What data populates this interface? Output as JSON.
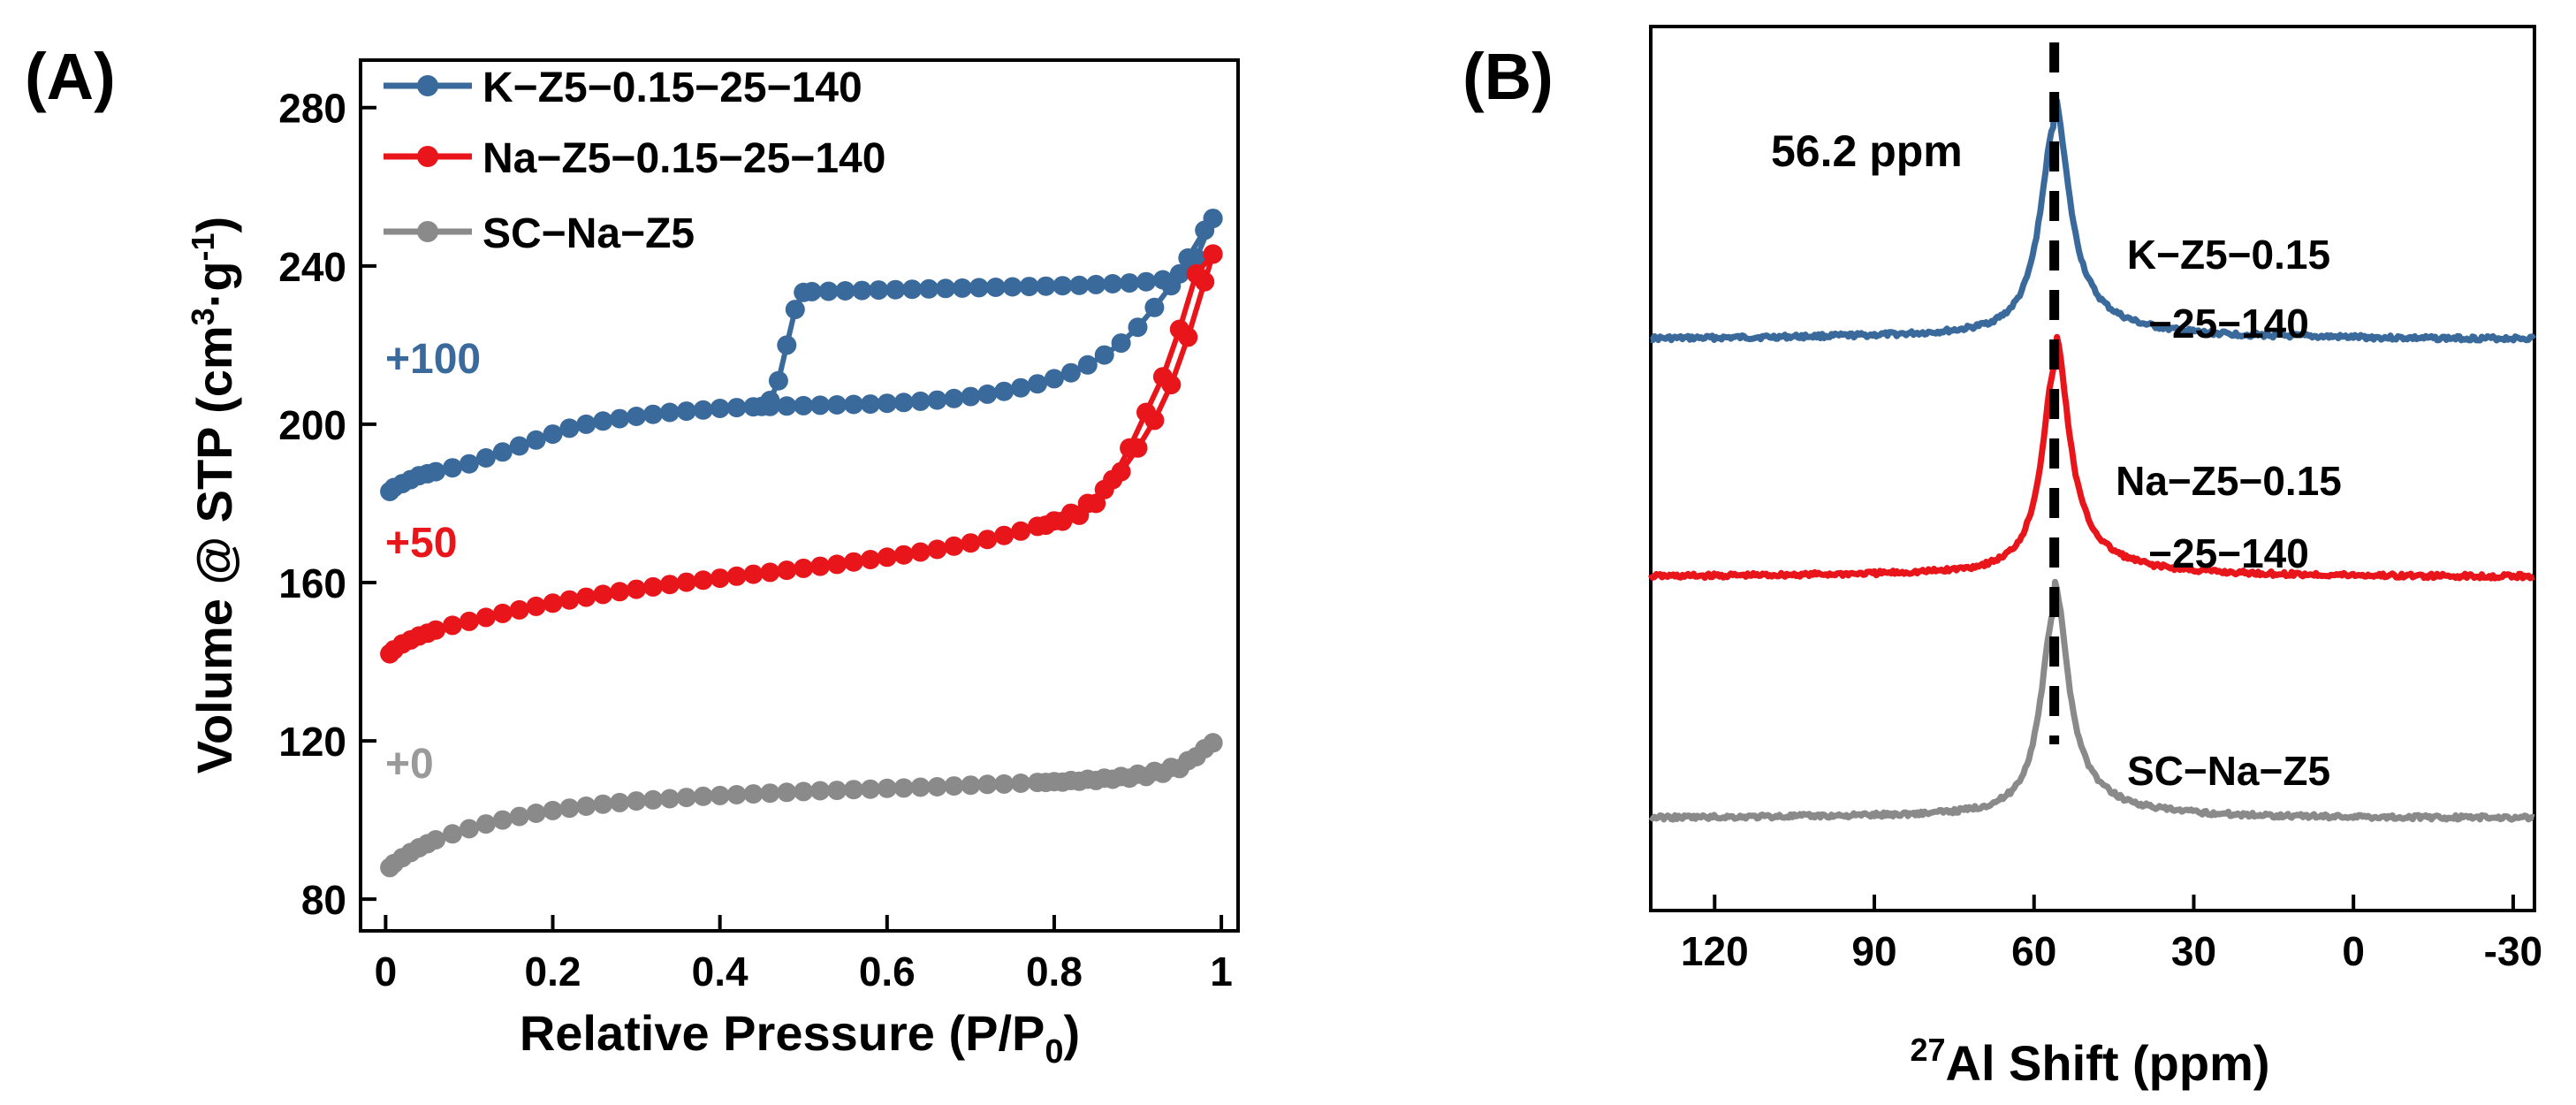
{
  "chart_data": [
    {
      "panel_label": "(A)",
      "type": "line",
      "xlabel": "Relative Pressure (P/P",
      "xlabel_sub": "0",
      "xlabel_end": ")",
      "ylabel_main": "Volume @ STP (cm",
      "ylabel_sup": "3",
      "ylabel_mid": "·g",
      "ylabel_sup2": "-1",
      "ylabel_end": ")",
      "xlim": [
        -0.03,
        1.02
      ],
      "ylim": [
        72,
        292
      ],
      "xticks": [
        0,
        0.2,
        0.4,
        0.6,
        0.8,
        1
      ],
      "xtick_labels": [
        "0",
        "0.2",
        "0.4",
        "0.6",
        "0.8",
        "1"
      ],
      "yticks": [
        80,
        120,
        160,
        200,
        240,
        280
      ],
      "ytick_labels": [
        "80",
        "120",
        "160",
        "200",
        "240",
        "280"
      ],
      "legend": [
        "K−Z5−0.15−25−140",
        "Na−Z5−0.15−25−140",
        "SC−Na−Z5"
      ],
      "offsets": [
        "+100",
        "+50",
        "+0"
      ],
      "series": [
        {
          "name": "K−Z5−0.15−25−140",
          "color": "#3a6a9b",
          "offset_value": 100,
          "adsorption": {
            "x": [
              0.005,
              0.01,
              0.02,
              0.03,
              0.04,
              0.05,
              0.06,
              0.08,
              0.1,
              0.12,
              0.14,
              0.16,
              0.18,
              0.2,
              0.22,
              0.24,
              0.26,
              0.28,
              0.3,
              0.32,
              0.34,
              0.36,
              0.38,
              0.4,
              0.42,
              0.44,
              0.46,
              0.48,
              0.5,
              0.52,
              0.54,
              0.56,
              0.58,
              0.6,
              0.62,
              0.64,
              0.66,
              0.68,
              0.7,
              0.72,
              0.74,
              0.76,
              0.78,
              0.8,
              0.82,
              0.84,
              0.86,
              0.88,
              0.9,
              0.92,
              0.94,
              0.96,
              0.98,
              0.99
            ],
            "y": [
              183,
              184,
              185,
              186,
              187,
              187.5,
              188,
              189,
              190,
              191.5,
              193,
              194.5,
              196,
              197.5,
              199,
              200,
              200.8,
              201.4,
              202,
              202.5,
              203,
              203.3,
              203.6,
              204,
              204.2,
              204.4,
              204.5,
              204.6,
              204.7,
              204.8,
              204.9,
              205,
              205.1,
              205.3,
              205.5,
              205.8,
              206.1,
              206.5,
              207,
              207.6,
              208.3,
              209.2,
              210.2,
              211.5,
              213,
              215,
              217.5,
              220.5,
              224.5,
              229.5,
              235,
              242,
              249,
              252
            ]
          },
          "desorption": {
            "x": [
              0.99,
              0.97,
              0.95,
              0.93,
              0.91,
              0.89,
              0.87,
              0.85,
              0.83,
              0.81,
              0.79,
              0.77,
              0.75,
              0.73,
              0.71,
              0.69,
              0.67,
              0.65,
              0.63,
              0.61,
              0.59,
              0.57,
              0.55,
              0.53,
              0.51,
              0.5,
              0.49,
              0.48,
              0.47,
              0.46,
              0.45
            ],
            "y": [
              252,
              242,
              238,
              236.5,
              236,
              235.7,
              235.5,
              235.3,
              235.1,
              235,
              234.9,
              234.8,
              234.7,
              234.6,
              234.5,
              234.4,
              234.3,
              234.2,
              234.1,
              234,
              233.9,
              233.8,
              233.7,
              233.6,
              233.5,
              233.3,
              229,
              220,
              211,
              206,
              204.5
            ]
          }
        },
        {
          "name": "Na−Z5−0.15−25−140",
          "color": "#e8151a",
          "offset_value": 50,
          "adsorption": {
            "x": [
              0.005,
              0.01,
              0.02,
              0.03,
              0.04,
              0.05,
              0.06,
              0.08,
              0.1,
              0.12,
              0.14,
              0.16,
              0.18,
              0.2,
              0.22,
              0.24,
              0.26,
              0.28,
              0.3,
              0.32,
              0.34,
              0.36,
              0.38,
              0.4,
              0.42,
              0.44,
              0.46,
              0.48,
              0.5,
              0.52,
              0.54,
              0.56,
              0.58,
              0.6,
              0.62,
              0.64,
              0.66,
              0.68,
              0.7,
              0.72,
              0.74,
              0.76,
              0.78,
              0.8,
              0.82,
              0.84,
              0.86,
              0.88,
              0.9,
              0.92,
              0.94,
              0.96,
              0.98,
              0.99
            ],
            "y": [
              142,
              143,
              144.5,
              145.5,
              146.5,
              147.2,
              148,
              149.2,
              150.2,
              151.2,
              152.2,
              153.1,
              154,
              154.8,
              155.6,
              156.3,
              157,
              157.7,
              158.3,
              158.9,
              159.5,
              160.1,
              160.6,
              161.1,
              161.6,
              162.1,
              162.6,
              163.1,
              163.6,
              164.1,
              164.6,
              165.2,
              165.8,
              166.4,
              167,
              167.7,
              168.4,
              169.2,
              170,
              170.9,
              171.9,
              173,
              174.2,
              175.6,
              177.5,
              180,
              183.5,
              188,
              194,
              201,
              210,
              222,
              236,
              243
            ]
          },
          "desorption": {
            "x": [
              0.99,
              0.97,
              0.95,
              0.93,
              0.91,
              0.89,
              0.87,
              0.85,
              0.83,
              0.81,
              0.79
            ],
            "y": [
              243,
              238,
              224,
              212,
              203,
              194,
              186,
              180,
              177,
              175.5,
              174.5
            ]
          }
        },
        {
          "name": "SC−Na−Z5",
          "color": "#8a8a8a",
          "offset_value": 0,
          "adsorption": {
            "x": [
              0.005,
              0.01,
              0.02,
              0.03,
              0.04,
              0.05,
              0.06,
              0.08,
              0.1,
              0.12,
              0.14,
              0.16,
              0.18,
              0.2,
              0.22,
              0.24,
              0.26,
              0.28,
              0.3,
              0.32,
              0.34,
              0.36,
              0.38,
              0.4,
              0.42,
              0.44,
              0.46,
              0.48,
              0.5,
              0.52,
              0.54,
              0.56,
              0.58,
              0.6,
              0.62,
              0.64,
              0.66,
              0.68,
              0.7,
              0.72,
              0.74,
              0.76,
              0.78,
              0.8,
              0.82,
              0.84,
              0.86,
              0.88,
              0.9,
              0.92,
              0.94,
              0.96,
              0.98,
              0.99
            ],
            "y": [
              88,
              89,
              90.5,
              91.8,
              93,
              94,
              95,
              96.5,
              97.8,
              99,
              100,
              100.9,
              101.7,
              102.4,
              103,
              103.5,
              104,
              104.4,
              104.8,
              105.1,
              105.4,
              105.7,
              106,
              106.2,
              106.4,
              106.6,
              106.8,
              107,
              107.2,
              107.4,
              107.5,
              107.7,
              107.8,
              108,
              108.1,
              108.3,
              108.4,
              108.6,
              108.8,
              109,
              109.1,
              109.3,
              109.5,
              109.7,
              110,
              110.3,
              110.6,
              111,
              111.6,
              112.3,
              113.3,
              115,
              118,
              119.5
            ]
          },
          "desorption": {
            "x": [
              0.99,
              0.97,
              0.95,
              0.93,
              0.91,
              0.89,
              0.87,
              0.85,
              0.83,
              0.81,
              0.79
            ],
            "y": [
              119.5,
              116,
              113,
              111.8,
              111,
              110.6,
              110.3,
              110,
              109.8,
              109.6,
              109.5
            ]
          }
        }
      ]
    },
    {
      "panel_label": "(B)",
      "type": "line",
      "xlabel_sup": "27",
      "xlabel": "Al Shift (ppm)",
      "xlim": [
        132,
        -34
      ],
      "xticks": [
        120,
        90,
        60,
        30,
        0,
        -30
      ],
      "xtick_labels": [
        "120",
        "90",
        "60",
        "30",
        "0",
        "-30"
      ],
      "ylabel": "",
      "peak_annotation": "56.2 ppm",
      "peak_position_ppm": 56.2,
      "series": [
        {
          "name": "K−Z5−0.15−25−140",
          "label_lines": [
            "K−Z5−0.15",
            "−25−140"
          ],
          "color": "#3a6a9b",
          "baseline": 0,
          "peak_center": 56.2,
          "peak_height": 1,
          "peak_width": 3.2,
          "tail_slope": 0.018
        },
        {
          "name": "Na−Z5−0.15−25−140",
          "label_lines": [
            "Na−Z5−0.15",
            "−25−140"
          ],
          "color": "#e8151a",
          "baseline": 0,
          "peak_center": 56.0,
          "peak_height": 1,
          "peak_width": 3.0,
          "tail_slope": 0.014
        },
        {
          "name": "SC−Na−Z5",
          "label_lines": [
            "SC−Na−Z5"
          ],
          "color": "#8a8a8a",
          "baseline": 0,
          "peak_center": 56.2,
          "peak_height": 1,
          "peak_width": 3.0,
          "tail_slope": 0.012
        }
      ]
    }
  ]
}
